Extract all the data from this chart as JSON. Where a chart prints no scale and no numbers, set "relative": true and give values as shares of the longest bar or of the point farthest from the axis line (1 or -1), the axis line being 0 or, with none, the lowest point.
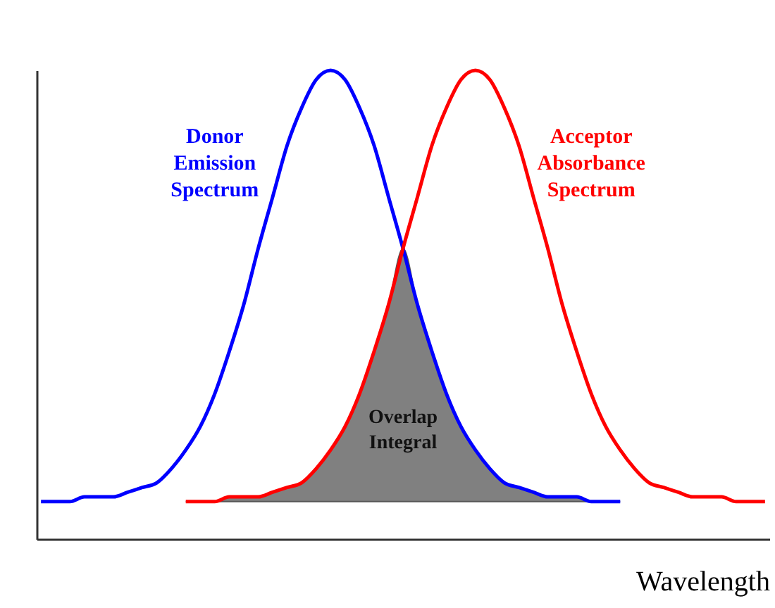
{
  "chart_data": {
    "type": "line",
    "relative": true,
    "xlabel": "Wavelength",
    "categories": [
      null,
      null,
      null,
      null,
      null,
      null,
      null,
      null,
      null,
      null,
      null,
      null,
      null,
      null,
      null,
      null,
      null,
      null,
      null,
      null,
      null,
      null,
      null,
      null,
      null,
      null,
      null,
      null,
      null,
      null,
      null,
      null,
      null,
      null,
      null,
      null,
      null,
      null,
      null,
      null,
      null,
      null,
      null,
      null,
      null,
      null,
      null,
      null,
      null,
      null,
      null
    ],
    "annotations": [
      "Overlap Integral"
    ],
    "series": [
      {
        "type": "area",
        "color": "#808080",
        "values": [
          null,
          null,
          null,
          null,
          null,
          null,
          null,
          null,
          null,
          null,
          0.08,
          0.08,
          0.08,
          0.09,
          0.09,
          0.09,
          0.1,
          0.11,
          0.12,
          0.15,
          0.19,
          0.24,
          0.31,
          0.4,
          0.5,
          0.62,
          0.5,
          0.4,
          0.31,
          0.24,
          0.19,
          0.15,
          0.12,
          0.11,
          0.1,
          0.09,
          0.09,
          0.09,
          0.08,
          0.08,
          0.08,
          null,
          null,
          null,
          null,
          null,
          null,
          null,
          null,
          null,
          null
        ]
      },
      {
        "name": "Donor Emission Spectrum",
        "color": "#0000ff",
        "values": [
          0.08,
          0.08,
          0.08,
          0.09,
          0.09,
          0.09,
          0.1,
          0.11,
          0.12,
          0.15,
          0.19,
          0.24,
          0.31,
          0.4,
          0.5,
          0.62,
          0.73,
          0.84,
          0.92,
          0.98,
          1.0,
          0.98,
          0.92,
          0.84,
          0.73,
          0.62,
          0.5,
          0.4,
          0.31,
          0.24,
          0.19,
          0.15,
          0.12,
          0.11,
          0.1,
          0.09,
          0.09,
          0.09,
          0.08,
          0.08,
          0.08,
          null,
          null,
          null,
          null,
          null,
          null,
          null,
          null,
          null,
          null
        ]
      },
      {
        "name": "Acceptor Absorbance Spectrum",
        "color": "#ff0000",
        "values": [
          null,
          null,
          null,
          null,
          null,
          null,
          null,
          null,
          null,
          null,
          0.08,
          0.08,
          0.08,
          0.09,
          0.09,
          0.09,
          0.1,
          0.11,
          0.12,
          0.15,
          0.19,
          0.24,
          0.31,
          0.4,
          0.5,
          0.62,
          0.73,
          0.84,
          0.92,
          0.98,
          1.0,
          0.98,
          0.92,
          0.84,
          0.73,
          0.62,
          0.5,
          0.4,
          0.31,
          0.24,
          0.19,
          0.15,
          0.12,
          0.11,
          0.1,
          0.09,
          0.09,
          0.09,
          0.08,
          0.08,
          0.08
        ]
      }
    ]
  }
}
